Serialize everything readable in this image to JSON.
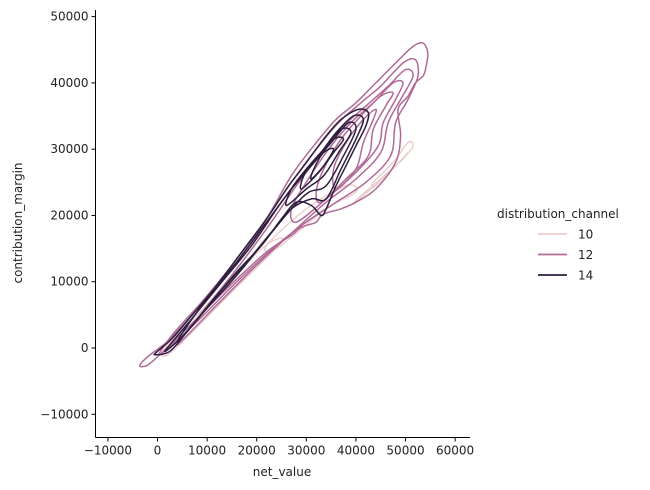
{
  "chart_data": {
    "type": "kde_contour",
    "xlabel": "net_value",
    "ylabel": "contribution_margin",
    "xlim": [
      -12500,
      63000
    ],
    "ylim": [
      -13500,
      51000
    ],
    "x_ticks": [
      -10000,
      0,
      10000,
      20000,
      30000,
      40000,
      50000,
      60000
    ],
    "y_ticks": [
      -10000,
      0,
      10000,
      20000,
      30000,
      40000,
      50000
    ],
    "x_tick_labels": [
      "−10000",
      "0",
      "10000",
      "20000",
      "30000",
      "40000",
      "50000",
      "60000"
    ],
    "y_tick_labels": [
      "−10000",
      "0",
      "10000",
      "20000",
      "30000",
      "40000",
      "50000"
    ],
    "grid": false,
    "legend": {
      "title": "distribution_channel",
      "placement": "right",
      "entries": [
        {
          "label": "10",
          "color": "#ebcfce"
        },
        {
          "label": "12",
          "color": "#b06a96"
        },
        {
          "label": "14",
          "color": "#2d1e3e"
        }
      ]
    },
    "series": [
      {
        "name": "10",
        "color": "#ebcfce",
        "contours": [
          [
            [
              44000,
              24500
            ],
            [
              50000,
              29000
            ],
            [
              51500,
              30500
            ],
            [
              50500,
              31000
            ],
            [
              47500,
              28000
            ],
            [
              43500,
              25000
            ]
          ],
          [
            [
              40000,
              22000
            ],
            [
              48000,
              27500
            ],
            [
              50500,
              29500
            ],
            [
              49500,
              28500
            ],
            [
              45000,
              25500
            ],
            [
              41000,
              23000
            ]
          ],
          [
            [
              24000,
              15000
            ],
            [
              34000,
              21000
            ],
            [
              40000,
              23500
            ],
            [
              38000,
              24500
            ],
            [
              30000,
              21000
            ],
            [
              22000,
              15500
            ]
          ],
          [
            [
              3000,
              -500
            ],
            [
              15000,
              8500
            ],
            [
              25000,
              16000
            ],
            [
              21000,
              15000
            ],
            [
              10000,
              6500
            ],
            [
              1500,
              0
            ]
          ]
        ]
      },
      {
        "name": "12",
        "color": "#b06a96",
        "contours": [
          [
            [
              -3000,
              -2800
            ],
            [
              -1000,
              -2000
            ],
            [
              6000,
              3000
            ],
            [
              14000,
              9000
            ],
            [
              22000,
              14500
            ],
            [
              27000,
              17000
            ],
            [
              28500,
              18000
            ],
            [
              30000,
              18500
            ],
            [
              32000,
              19000
            ],
            [
              33000,
              20000
            ],
            [
              34500,
              20500
            ],
            [
              37000,
              21000
            ],
            [
              40000,
              22000
            ],
            [
              44000,
              24000
            ],
            [
              48000,
              28000
            ],
            [
              49000,
              32000
            ],
            [
              48500,
              36000
            ],
            [
              50500,
              38000
            ],
            [
              52000,
              40000
            ],
            [
              53500,
              41000
            ],
            [
              54000,
              42000
            ],
            [
              54500,
              44500
            ],
            [
              53500,
              46000
            ],
            [
              51500,
              45500
            ],
            [
              48000,
              43000
            ],
            [
              44000,
              40000
            ],
            [
              40000,
              37000
            ],
            [
              36000,
              34500
            ],
            [
              32000,
              31000
            ],
            [
              27000,
              26000
            ],
            [
              22000,
              19500
            ],
            [
              17000,
              14000
            ],
            [
              12000,
              9500
            ],
            [
              7000,
              5000
            ],
            [
              2000,
              1000
            ],
            [
              -1500,
              -1000
            ],
            [
              -3500,
              -2500
            ]
          ],
          [
            [
              500,
              -1000
            ],
            [
              8000,
              4000
            ],
            [
              16000,
              10000
            ],
            [
              24000,
              15500
            ],
            [
              30000,
              19000
            ],
            [
              36000,
              22000
            ],
            [
              42000,
              25000
            ],
            [
              47000,
              29000
            ],
            [
              48000,
              34000
            ],
            [
              50500,
              37500
            ],
            [
              52500,
              41000
            ],
            [
              52000,
              43500
            ],
            [
              49500,
              43000
            ],
            [
              45000,
              39500
            ],
            [
              41000,
              37000
            ],
            [
              36500,
              34000
            ],
            [
              32000,
              30000
            ],
            [
              27000,
              25000
            ],
            [
              21000,
              18500
            ],
            [
              15000,
              12500
            ],
            [
              9000,
              7000
            ],
            [
              3000,
              2000
            ]
          ],
          [
            [
              4000,
              500
            ],
            [
              12000,
              6500
            ],
            [
              20000,
              12500
            ],
            [
              28000,
              18000
            ],
            [
              34000,
              22000
            ],
            [
              40000,
              25500
            ],
            [
              45000,
              29500
            ],
            [
              46500,
              34000
            ],
            [
              49000,
              37500
            ],
            [
              51500,
              41000
            ],
            [
              50000,
              42000
            ],
            [
              46500,
              39500
            ],
            [
              42000,
              36500
            ],
            [
              37500,
              33500
            ],
            [
              33000,
              29500
            ],
            [
              28000,
              24500
            ],
            [
              22000,
              18000
            ],
            [
              15000,
              11000
            ],
            [
              8000,
              4500
            ]
          ],
          [
            [
              28000,
              19000
            ],
            [
              34000,
              22500
            ],
            [
              40000,
              26500
            ],
            [
              44500,
              30500
            ],
            [
              45500,
              34000
            ],
            [
              48000,
              37500
            ],
            [
              49500,
              40000
            ],
            [
              47500,
              40000
            ],
            [
              43500,
              37000
            ],
            [
              39000,
              34000
            ],
            [
              34500,
              30000
            ],
            [
              30000,
              25000
            ],
            [
              27000,
              21000
            ]
          ],
          [
            [
              33000,
              22000
            ],
            [
              38000,
              25500
            ],
            [
              42500,
              29000
            ],
            [
              43500,
              33000
            ],
            [
              46000,
              36500
            ],
            [
              47500,
              38500
            ],
            [
              45000,
              38000
            ],
            [
              41000,
              35000
            ],
            [
              37000,
              31500
            ],
            [
              33500,
              27000
            ],
            [
              32000,
              23500
            ]
          ],
          [
            [
              36000,
              24000
            ],
            [
              40000,
              27000
            ],
            [
              41500,
              31000
            ],
            [
              43500,
              34500
            ],
            [
              44000,
              36000
            ],
            [
              41500,
              34500
            ],
            [
              38000,
              31000
            ],
            [
              35500,
              27000
            ]
          ]
        ]
      },
      {
        "name": "14",
        "color": "#2d1e3e",
        "contours": [
          [
            [
              -500,
              -1000
            ],
            [
              2500,
              -500
            ],
            [
              6000,
              2500
            ],
            [
              11000,
              7000
            ],
            [
              16000,
              11500
            ],
            [
              21000,
              15500
            ],
            [
              25000,
              19500
            ],
            [
              28000,
              22000
            ],
            [
              31000,
              21500
            ],
            [
              33000,
              20000
            ],
            [
              34000,
              21000
            ],
            [
              36000,
              24500
            ],
            [
              38000,
              27500
            ],
            [
              40000,
              30500
            ],
            [
              42000,
              33500
            ],
            [
              42500,
              35500
            ],
            [
              40500,
              36000
            ],
            [
              37000,
              34500
            ],
            [
              34000,
              32000
            ],
            [
              31000,
              29000
            ],
            [
              28500,
              26500
            ],
            [
              26000,
              24000
            ],
            [
              22000,
              19500
            ],
            [
              17000,
              14500
            ],
            [
              12000,
              9500
            ],
            [
              7000,
              5000
            ],
            [
              3000,
              1500
            ],
            [
              0,
              -500
            ]
          ],
          [
            [
              1500,
              -500
            ],
            [
              6000,
              2500
            ],
            [
              12000,
              8000
            ],
            [
              18000,
              13000
            ],
            [
              23000,
              17500
            ],
            [
              27000,
              21000
            ],
            [
              31000,
              22500
            ],
            [
              34000,
              22500
            ],
            [
              37000,
              27000
            ],
            [
              40000,
              31500
            ],
            [
              41500,
              34500
            ],
            [
              39500,
              35000
            ],
            [
              36000,
              32500
            ],
            [
              32500,
              29000
            ],
            [
              29000,
              26000
            ],
            [
              24500,
              21500
            ],
            [
              19000,
              15500
            ],
            [
              13000,
              10000
            ],
            [
              7000,
              4500
            ]
          ],
          [
            [
              4000,
              1000
            ],
            [
              10000,
              6000
            ],
            [
              16000,
              11000
            ],
            [
              22000,
              16500
            ],
            [
              27000,
              21000
            ],
            [
              30500,
              23500
            ],
            [
              34000,
              24500
            ],
            [
              37500,
              29000
            ],
            [
              40000,
              33000
            ],
            [
              38500,
              34000
            ],
            [
              35000,
              31000
            ],
            [
              31000,
              27500
            ],
            [
              27000,
              24000
            ],
            [
              22000,
              19000
            ],
            [
              16000,
              13000
            ],
            [
              9000,
              6500
            ]
          ],
          [
            [
              26000,
              21500
            ],
            [
              30000,
              24000
            ],
            [
              33500,
              26000
            ],
            [
              36500,
              29500
            ],
            [
              39000,
              32500
            ],
            [
              37000,
              33000
            ],
            [
              33500,
              30000
            ],
            [
              30000,
              27000
            ],
            [
              27000,
              24000
            ]
          ],
          [
            [
              29000,
              24000
            ],
            [
              32500,
              26500
            ],
            [
              35500,
              29500
            ],
            [
              37500,
              31500
            ],
            [
              35500,
              31500
            ],
            [
              32000,
              28500
            ],
            [
              29500,
              26000
            ]
          ],
          [
            [
              31000,
              25500
            ],
            [
              33500,
              27500
            ],
            [
              35500,
              30000
            ],
            [
              33500,
              29500
            ],
            [
              31500,
              27000
            ]
          ]
        ]
      }
    ]
  }
}
